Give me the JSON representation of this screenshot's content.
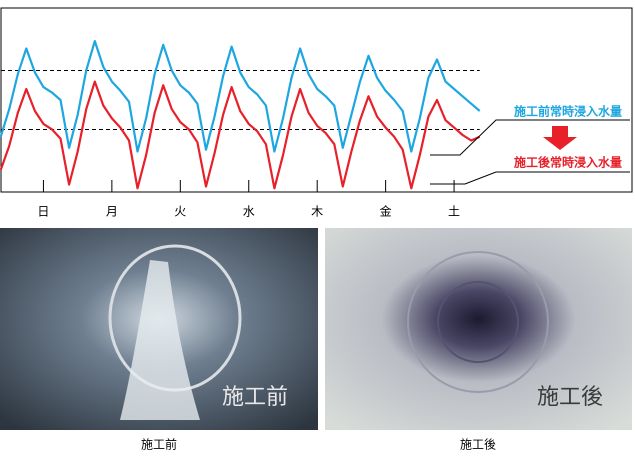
{
  "chart_data": {
    "type": "line",
    "x": [
      -0.625,
      -0.5,
      -0.375,
      -0.25,
      -0.125,
      0,
      0.125,
      0.25,
      0.375,
      0.5,
      0.625,
      0.75,
      0.875,
      1,
      1.125,
      1.25,
      1.375,
      1.5,
      1.625,
      1.75,
      1.875,
      2,
      2.125,
      2.25,
      2.375,
      2.5,
      2.625,
      2.75,
      2.875,
      3,
      3.125,
      3.25,
      3.375,
      3.5,
      3.625,
      3.75,
      3.875,
      4,
      4.125,
      4.25,
      4.375,
      4.5,
      4.625,
      4.75,
      4.875,
      5,
      5.125,
      5.25,
      5.375,
      5.5,
      5.625,
      5.75,
      5.875,
      6,
      6.125,
      6.25,
      6.375
    ],
    "series": [
      {
        "name": "施工前常時浸入水量",
        "color": "#1ea6e0",
        "values": [
          30,
          45,
          64,
          78,
          65,
          57,
          54,
          50,
          24,
          42,
          66,
          82,
          68,
          60,
          55,
          49,
          22,
          40,
          64,
          80,
          66,
          58,
          54,
          48,
          23,
          41,
          63,
          79,
          65,
          57,
          53,
          47,
          22,
          40,
          62,
          78,
          64,
          56,
          52,
          47,
          24,
          42,
          60,
          74,
          62,
          55,
          50,
          44,
          22,
          40,
          62,
          72,
          60,
          56,
          52,
          48,
          44
        ]
      },
      {
        "name": "施工後常時浸入水量",
        "color": "#e8202a",
        "values": [
          12,
          25,
          43,
          56,
          44,
          37,
          34,
          29,
          4,
          22,
          45,
          60,
          47,
          40,
          35,
          28,
          2,
          20,
          43,
          58,
          45,
          38,
          34,
          27,
          3,
          21,
          42,
          57,
          44,
          37,
          33,
          26,
          2,
          20,
          41,
          56,
          43,
          36,
          32,
          26,
          3,
          22,
          39,
          52,
          41,
          35,
          30,
          23,
          2,
          20,
          41,
          50,
          39,
          35,
          31,
          28,
          30
        ]
      }
    ],
    "xlim": [
      -0.62,
      8.6
    ],
    "ylim": [
      0,
      100
    ],
    "xticks": [
      {
        "value": 0,
        "label": "日"
      },
      {
        "value": 1,
        "label": "月"
      },
      {
        "value": 2,
        "label": "火"
      },
      {
        "value": 3,
        "label": "水"
      },
      {
        "value": 4,
        "label": "木"
      },
      {
        "value": 5,
        "label": "金"
      },
      {
        "value": 6,
        "label": "土"
      }
    ],
    "reference_lines": [
      66,
      34
    ],
    "grid": false,
    "photos": [
      {
        "caption": "施工前",
        "overlay": "施工前"
      },
      {
        "caption": "施工後",
        "overlay": "施工後"
      }
    ]
  }
}
